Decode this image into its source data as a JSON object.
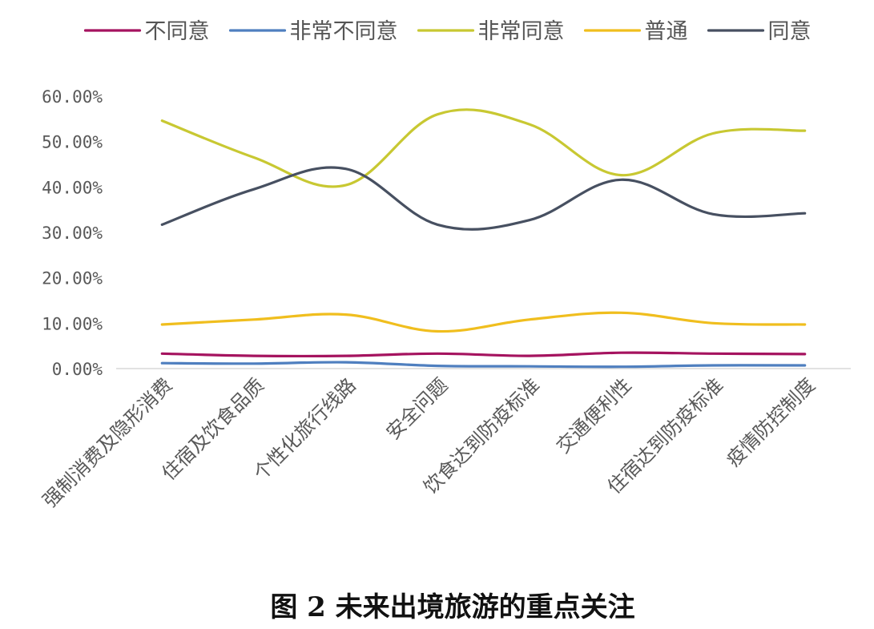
{
  "chart_data": {
    "type": "line",
    "smooth": true,
    "categories": [
      "强制消费及隐形消费",
      "住宿及饮食品质",
      "个性化旅行线路",
      "安全问题",
      "饮食达到防疫标准",
      "交通便利性",
      "住宿达到防疫标准",
      "疫情防控制度"
    ],
    "series": [
      {
        "name": "不同意",
        "color": "#a5135f",
        "values": [
          3.3,
          2.8,
          2.8,
          3.3,
          2.8,
          3.5,
          3.3,
          3.2
        ]
      },
      {
        "name": "非常不同意",
        "color": "#4f7fbf",
        "values": [
          1.2,
          1.1,
          1.4,
          0.6,
          0.5,
          0.4,
          0.7,
          0.7
        ]
      },
      {
        "name": "非常同意",
        "color": "#c8c832",
        "values": [
          54.6,
          46.5,
          40.4,
          56.0,
          53.8,
          42.6,
          51.8,
          52.4
        ]
      },
      {
        "name": "普通",
        "color": "#f0be1e",
        "values": [
          9.7,
          10.8,
          11.9,
          8.2,
          10.8,
          12.3,
          10.0,
          9.7
        ]
      },
      {
        "name": "同意",
        "color": "#475061",
        "values": [
          31.7,
          39.5,
          44.0,
          31.7,
          32.7,
          41.6,
          34.0,
          34.2
        ]
      }
    ],
    "yticks": [
      "0.00%",
      "10.00%",
      "20.00%",
      "30.00%",
      "40.00%",
      "50.00%",
      "60.00%"
    ],
    "ylim": [
      0,
      60
    ],
    "legend_position": "top",
    "grid": false,
    "caption": "图 2   未来出境旅游的重点关注"
  }
}
